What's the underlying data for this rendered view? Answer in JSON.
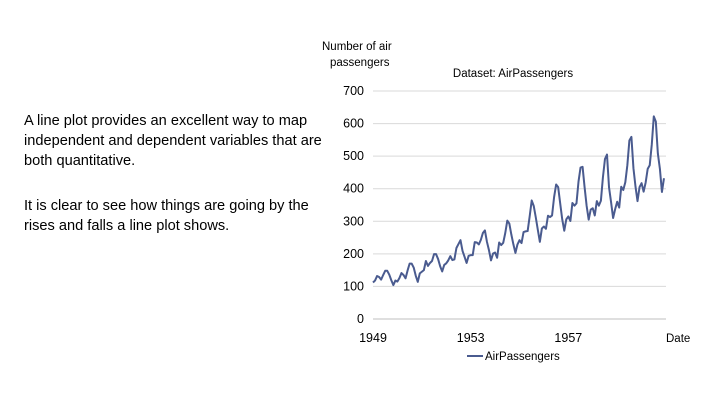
{
  "slide": {
    "paragraphs": [
      "A line plot provides an excellent way to map independent and dependent variables that are both quantitative.",
      "It is clear to see how things are going by the rises and falls a line plot shows."
    ]
  },
  "chart_data": {
    "type": "line",
    "title": "Dataset: AirPassengers",
    "ylabel": "Number of air passengers",
    "xlabel": "Date",
    "ylim": [
      0,
      700
    ],
    "yticks": [
      0,
      100,
      200,
      300,
      400,
      500,
      600,
      700
    ],
    "xlim": [
      1949,
      1961
    ],
    "xticks": [
      "1949",
      "1953",
      "1957"
    ],
    "grid": true,
    "legend": "bottom",
    "colors": {
      "series": "#4a5b8f",
      "grid": "#d9d9d9",
      "axis": "#bfbfbf"
    },
    "x_start": 1949,
    "x_step_months": 1,
    "series": [
      {
        "name": "AirPassengers",
        "values": [
          112,
          118,
          132,
          129,
          121,
          135,
          148,
          148,
          136,
          119,
          104,
          118,
          115,
          126,
          141,
          135,
          125,
          149,
          170,
          170,
          158,
          133,
          114,
          140,
          145,
          150,
          178,
          163,
          172,
          178,
          199,
          199,
          184,
          162,
          146,
          166,
          171,
          180,
          193,
          181,
          183,
          218,
          230,
          242,
          209,
          191,
          172,
          194,
          196,
          196,
          236,
          235,
          229,
          243,
          264,
          272,
          237,
          211,
          180,
          201,
          204,
          188,
          235,
          227,
          234,
          264,
          302,
          293,
          259,
          229,
          203,
          229,
          242,
          233,
          267,
          269,
          270,
          315,
          364,
          347,
          312,
          274,
          237,
          278,
          284,
          277,
          317,
          313,
          318,
          374,
          413,
          405,
          355,
          306,
          271,
          306,
          315,
          301,
          356,
          348,
          355,
          422,
          465,
          467,
          404,
          347,
          305,
          336,
          340,
          318,
          362,
          348,
          363,
          435,
          491,
          505,
          404,
          359,
          310,
          337,
          360,
          342,
          406,
          396,
          420,
          472,
          548,
          559,
          463,
          407,
          362,
          405,
          417,
          391,
          419,
          461,
          472,
          535,
          622,
          606,
          508,
          461,
          390,
          432
        ]
      }
    ]
  }
}
